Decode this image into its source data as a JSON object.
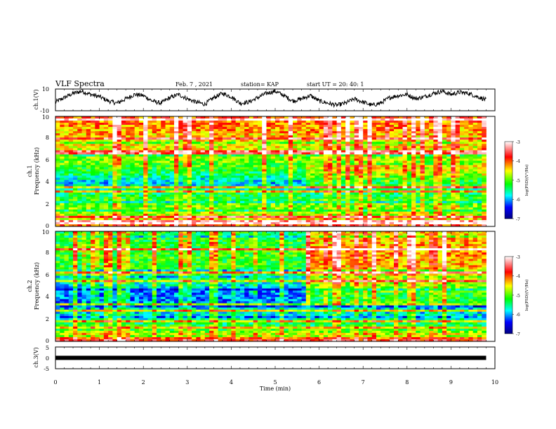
{
  "header": {
    "title": "VLF Spectra",
    "date": "Feb. 7 , 2021",
    "station": "station= KAP",
    "start": "start  UT  =   20: 40: 1"
  },
  "chart_data": [
    {
      "id": "ch1-waveform",
      "type": "line",
      "ylabel": "ch.1(V)",
      "ylim": [
        -10,
        10
      ],
      "y_ticks": [
        "10",
        "-10"
      ],
      "xlim": [
        0,
        10
      ],
      "x_extent_min": 9.8,
      "x": [
        0.0,
        0.2,
        0.4,
        0.6,
        0.8,
        1.0,
        1.2,
        1.4,
        1.6,
        1.8,
        2.0,
        2.2,
        2.4,
        2.6,
        2.8,
        3.0,
        3.2,
        3.4,
        3.6,
        3.8,
        4.0,
        4.2,
        4.4,
        4.6,
        4.8,
        5.0,
        5.2,
        5.4,
        5.6,
        5.8,
        6.0,
        6.2,
        6.4,
        6.6,
        6.8,
        7.0,
        7.2,
        7.4,
        7.6,
        7.8,
        8.0,
        8.2,
        8.4,
        8.6,
        8.8,
        9.0,
        9.2,
        9.4,
        9.6,
        9.8
      ],
      "y": [
        -2,
        2,
        6,
        8,
        5,
        3,
        -1,
        -3,
        1,
        5,
        4,
        -1,
        -3,
        2,
        5,
        1,
        -2,
        -4,
        2,
        6,
        3,
        -3,
        -2,
        2,
        6,
        8,
        4,
        -1,
        1,
        4,
        -1,
        -3,
        -5,
        -3,
        1,
        -2,
        -5,
        -3,
        2,
        4,
        5,
        1,
        3,
        6,
        8,
        5,
        7,
        6,
        3,
        0
      ]
    },
    {
      "id": "ch1-spectrogram",
      "type": "heatmap",
      "ylabel": "ch.1",
      "ylabel2": "Frequency  (kHz)",
      "ylim": [
        0,
        10
      ],
      "y_ticks": [
        "0",
        "2",
        "4",
        "6",
        "8",
        "10"
      ],
      "xlim": [
        0,
        10
      ],
      "x_extent_min": 9.8,
      "value_range": [
        -7,
        -3
      ],
      "colorbar_label": "log(PSD)(V²/Hz)",
      "colorbar_ticks": [
        "-3",
        "-4",
        "-5",
        "-6",
        "-7"
      ],
      "colormap": [
        "#ffffff",
        "#ff0000",
        "#ffff00",
        "#00ff00",
        "#00ffff",
        "#0000ff",
        "#000080"
      ],
      "freq_profile_kHz": [
        0,
        1,
        2,
        3,
        4,
        5,
        6,
        7,
        8,
        9,
        10
      ],
      "psd_profile_log": [
        -3.9,
        -4.7,
        -5.0,
        -5.4,
        -5.9,
        -5.3,
        -4.9,
        -4.6,
        -4.4,
        -4.2,
        -4.0
      ],
      "notes": "dense vertical impulsive lines (sferics) from 0 to 10 kHz"
    },
    {
      "id": "ch2-spectrogram",
      "type": "heatmap",
      "ylabel": "ch.2",
      "ylabel2": "Frequency  (kHz)",
      "ylim": [
        0,
        10
      ],
      "y_ticks": [
        "0",
        "2",
        "4",
        "6",
        "8",
        "10"
      ],
      "xlim": [
        0,
        10
      ],
      "x_extent_min": 9.8,
      "value_range": [
        -7,
        -3
      ],
      "colorbar_label": "log(PSD)(V²/Hz)",
      "colorbar_ticks": [
        "-3",
        "-4",
        "-5",
        "-6",
        "-7"
      ],
      "colormap": [
        "#ffffff",
        "#ff0000",
        "#ffff00",
        "#00ff00",
        "#00ffff",
        "#0000ff",
        "#000080"
      ],
      "freq_profile_kHz": [
        0,
        1,
        2,
        3,
        4,
        5,
        6,
        7,
        8,
        9,
        10
      ],
      "psd_profile_log": [
        -3.6,
        -5.1,
        -5.6,
        -5.9,
        -6.2,
        -5.8,
        -5.4,
        -5.2,
        -5.1,
        -5.2,
        -5.3
      ],
      "notes": "intensity enhancement above 3.5 kHz after about 5.7 min"
    },
    {
      "id": "ch3-waveform",
      "type": "line",
      "ylabel": "ch.3(V)",
      "ylim": [
        -5,
        5
      ],
      "y_ticks": [
        "5",
        "0",
        "-5"
      ],
      "xlim": [
        0,
        10
      ],
      "x_extent_min": 9.8,
      "x": [
        0,
        9.8
      ],
      "y": [
        0,
        0
      ]
    }
  ],
  "time_axis": {
    "label": "Time  (min)",
    "ticks": [
      "0",
      "1",
      "2",
      "3",
      "4",
      "5",
      "6",
      "7",
      "8",
      "9",
      "10"
    ]
  }
}
